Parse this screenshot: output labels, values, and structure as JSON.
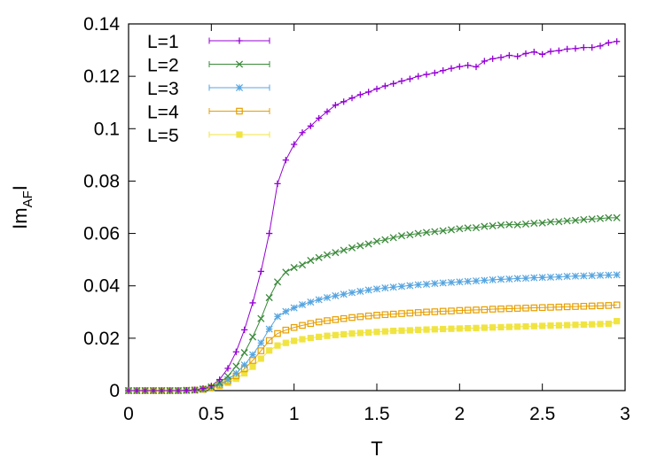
{
  "chart_data": {
    "type": "line",
    "xlabel": "T",
    "ylabel_main": "Im",
    "ylabel_sub": "AF",
    "ylabel_end": "I",
    "xlim": [
      0,
      3
    ],
    "ylim": [
      0,
      0.14
    ],
    "xticks": [
      0,
      0.5,
      1,
      1.5,
      2,
      2.5,
      3
    ],
    "xtick_labels": [
      "0",
      "0.5",
      "1",
      "1.5",
      "2",
      "2.5",
      "3"
    ],
    "yticks": [
      0,
      0.02,
      0.04,
      0.06,
      0.08,
      0.1,
      0.12,
      0.14
    ],
    "ytick_labels": [
      "0",
      "0.02",
      "0.04",
      "0.06",
      "0.08",
      "0.1",
      "0.12",
      "0.14"
    ],
    "legend_position": "top-left",
    "grid": false,
    "x": [
      0.0,
      0.05,
      0.1,
      0.15,
      0.2,
      0.25,
      0.3,
      0.35,
      0.4,
      0.45,
      0.5,
      0.55,
      0.6,
      0.65,
      0.7,
      0.75,
      0.8,
      0.85,
      0.9,
      0.95,
      1.0,
      1.05,
      1.1,
      1.15,
      1.2,
      1.25,
      1.3,
      1.35,
      1.4,
      1.45,
      1.5,
      1.55,
      1.6,
      1.65,
      1.7,
      1.75,
      1.8,
      1.85,
      1.9,
      1.95,
      2.0,
      2.05,
      2.1,
      2.15,
      2.2,
      2.25,
      2.3,
      2.35,
      2.4,
      2.45,
      2.5,
      2.55,
      2.6,
      2.65,
      2.7,
      2.75,
      2.8,
      2.85,
      2.9,
      2.95
    ],
    "series": [
      {
        "name": "L=1",
        "color": "#9400d3",
        "marker": "plus",
        "values": [
          0.0,
          0.0,
          0.0,
          0.0,
          0.0,
          0.0,
          0.0,
          0.0001,
          0.0003,
          0.0008,
          0.0018,
          0.0042,
          0.0085,
          0.0148,
          0.0232,
          0.0335,
          0.0455,
          0.06,
          0.079,
          0.088,
          0.094,
          0.0985,
          0.101,
          0.104,
          0.1065,
          0.109,
          0.1103,
          0.1117,
          0.113,
          0.114,
          0.1152,
          0.1163,
          0.1172,
          0.1182,
          0.119,
          0.12,
          0.1207,
          0.1213,
          0.1222,
          0.123,
          0.1237,
          0.1242,
          0.1236,
          0.1258,
          0.1267,
          0.1272,
          0.128,
          0.1276,
          0.1287,
          0.1293,
          0.1284,
          0.1295,
          0.1298,
          0.1304,
          0.1306,
          0.131,
          0.131,
          0.1316,
          0.1328,
          0.1333
        ]
      },
      {
        "name": "L=2",
        "color": "#3a8a3a",
        "marker": "cross",
        "values": [
          0.0,
          0.0,
          0.0,
          0.0,
          0.0,
          0.0,
          0.0,
          0.0001,
          0.0002,
          0.0006,
          0.0014,
          0.003,
          0.0055,
          0.0093,
          0.0145,
          0.0205,
          0.0275,
          0.0355,
          0.0415,
          0.0452,
          0.047,
          0.048,
          0.0497,
          0.0508,
          0.0518,
          0.0527,
          0.0536,
          0.0545,
          0.0553,
          0.056,
          0.057,
          0.0576,
          0.0584,
          0.0591,
          0.0595,
          0.06,
          0.0604,
          0.0607,
          0.061,
          0.0614,
          0.0618,
          0.0621,
          0.0622,
          0.0627,
          0.0629,
          0.0632,
          0.0634,
          0.0633,
          0.0636,
          0.0639,
          0.064,
          0.0644,
          0.0645,
          0.0648,
          0.065,
          0.0653,
          0.0655,
          0.0657,
          0.066,
          0.066
        ]
      },
      {
        "name": "L=3",
        "color": "#56a5e0",
        "marker": "star",
        "values": [
          0.0,
          0.0,
          0.0,
          0.0,
          0.0,
          0.0,
          0.0,
          0.0001,
          0.0002,
          0.0005,
          0.0012,
          0.0024,
          0.0042,
          0.0066,
          0.0098,
          0.0137,
          0.0182,
          0.0235,
          0.0283,
          0.0302,
          0.0316,
          0.0328,
          0.0338,
          0.0347,
          0.0355,
          0.0362,
          0.0368,
          0.0374,
          0.0379,
          0.0384,
          0.0388,
          0.0392,
          0.0395,
          0.0398,
          0.0401,
          0.0404,
          0.0406,
          0.0409,
          0.0411,
          0.0413,
          0.0415,
          0.0417,
          0.0419,
          0.0421,
          0.0423,
          0.0425,
          0.0426,
          0.0428,
          0.0429,
          0.0431,
          0.0432,
          0.0433,
          0.0434,
          0.0436,
          0.0437,
          0.0438,
          0.0439,
          0.044,
          0.0441,
          0.0442
        ]
      },
      {
        "name": "L=4",
        "color": "#e69f00",
        "marker": "square-open",
        "values": [
          0.0,
          0.0,
          0.0,
          0.0,
          0.0,
          0.0,
          0.0,
          0.0001,
          0.0002,
          0.0005,
          0.0011,
          0.0021,
          0.0036,
          0.0056,
          0.0083,
          0.0115,
          0.0152,
          0.0191,
          0.0218,
          0.0231,
          0.0241,
          0.0249,
          0.0256,
          0.0262,
          0.0267,
          0.0271,
          0.0275,
          0.0279,
          0.0282,
          0.0285,
          0.0288,
          0.029,
          0.0292,
          0.0294,
          0.0296,
          0.0298,
          0.03,
          0.0301,
          0.0303,
          0.0304,
          0.0306,
          0.0307,
          0.0308,
          0.0309,
          0.0311,
          0.0312,
          0.0313,
          0.0314,
          0.0315,
          0.0316,
          0.0317,
          0.0318,
          0.0319,
          0.032,
          0.0321,
          0.0322,
          0.0323,
          0.0324,
          0.0325,
          0.0327
        ]
      },
      {
        "name": "L=5",
        "color": "#f0e442",
        "marker": "square-filled",
        "values": [
          0.0,
          0.0,
          0.0,
          0.0,
          0.0,
          0.0,
          0.0,
          0.0001,
          0.0002,
          0.0004,
          0.0009,
          0.0017,
          0.0029,
          0.0045,
          0.0066,
          0.0091,
          0.0122,
          0.0153,
          0.0172,
          0.0182,
          0.019,
          0.0196,
          0.0201,
          0.0205,
          0.0209,
          0.0212,
          0.0215,
          0.0218,
          0.022,
          0.0222,
          0.0224,
          0.0226,
          0.0228,
          0.0229,
          0.023,
          0.0232,
          0.0233,
          0.0234,
          0.0235,
          0.0236,
          0.0237,
          0.0238,
          0.0239,
          0.024,
          0.0241,
          0.0242,
          0.0243,
          0.0244,
          0.0245,
          0.0246,
          0.0247,
          0.0248,
          0.0249,
          0.025,
          0.0251,
          0.0252,
          0.0253,
          0.0254,
          0.0255,
          0.0265
        ]
      }
    ]
  }
}
